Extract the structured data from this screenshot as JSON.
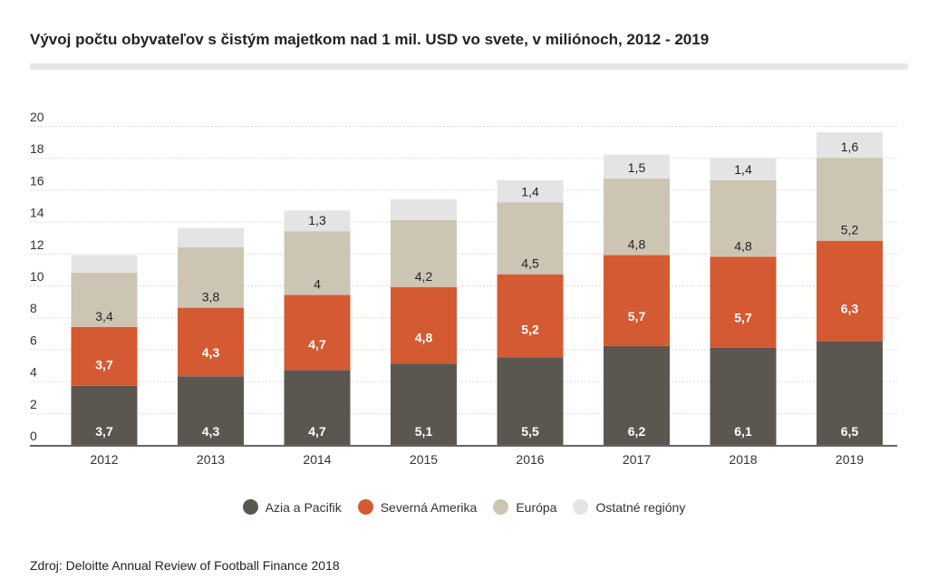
{
  "chart_data": {
    "type": "bar",
    "stacked": true,
    "title": "Vývoj počtu obyvateľov s čistým majetkom nad 1 mil. USD vo svete, v miliónoch, 2012 - 2019",
    "xlabel": "",
    "ylabel": "",
    "ylim": [
      0,
      20
    ],
    "yticks": [
      "0",
      "2",
      "4",
      "6",
      "8",
      "10",
      "12",
      "14",
      "16",
      "18",
      "20"
    ],
    "categories": [
      "2012",
      "2013",
      "2014",
      "2015",
      "2016",
      "2017",
      "2018",
      "2019"
    ],
    "series": [
      {
        "name": "Azia a Pacifik",
        "color": "#5b5750",
        "values": [
          3.7,
          4.3,
          4.7,
          5.1,
          5.5,
          6.2,
          6.1,
          6.5
        ],
        "labels": [
          "3,7",
          "4,3",
          "4,7",
          "5,1",
          "5,5",
          "6,2",
          "6,1",
          "6,5"
        ]
      },
      {
        "name": "Severná Amerika",
        "color": "#d35a33",
        "values": [
          3.7,
          4.3,
          4.7,
          4.8,
          5.2,
          5.7,
          5.7,
          6.3
        ],
        "labels": [
          "3,7",
          "4,3",
          "4,7",
          "4,8",
          "5,2",
          "5,7",
          "5,7",
          "6,3"
        ]
      },
      {
        "name": "Európa",
        "color": "#cdc5b4",
        "values": [
          3.4,
          3.8,
          4.0,
          4.2,
          4.5,
          4.8,
          4.8,
          5.2
        ],
        "labels": [
          "3,4",
          "3,8",
          "4",
          "4,2",
          "4,5",
          "4,8",
          "4,8",
          "5,2"
        ]
      },
      {
        "name": "Ostatné regióny",
        "color": "#e4e4e4",
        "values": [
          1.1,
          1.2,
          1.3,
          1.3,
          1.4,
          1.5,
          1.4,
          1.6
        ],
        "labels": [
          "",
          "",
          "1,3",
          "",
          "1,4",
          "1,5",
          "1,4",
          "1,6"
        ]
      }
    ],
    "source": "Zdroj: Deloitte Annual Review of Football Finance 2018"
  }
}
